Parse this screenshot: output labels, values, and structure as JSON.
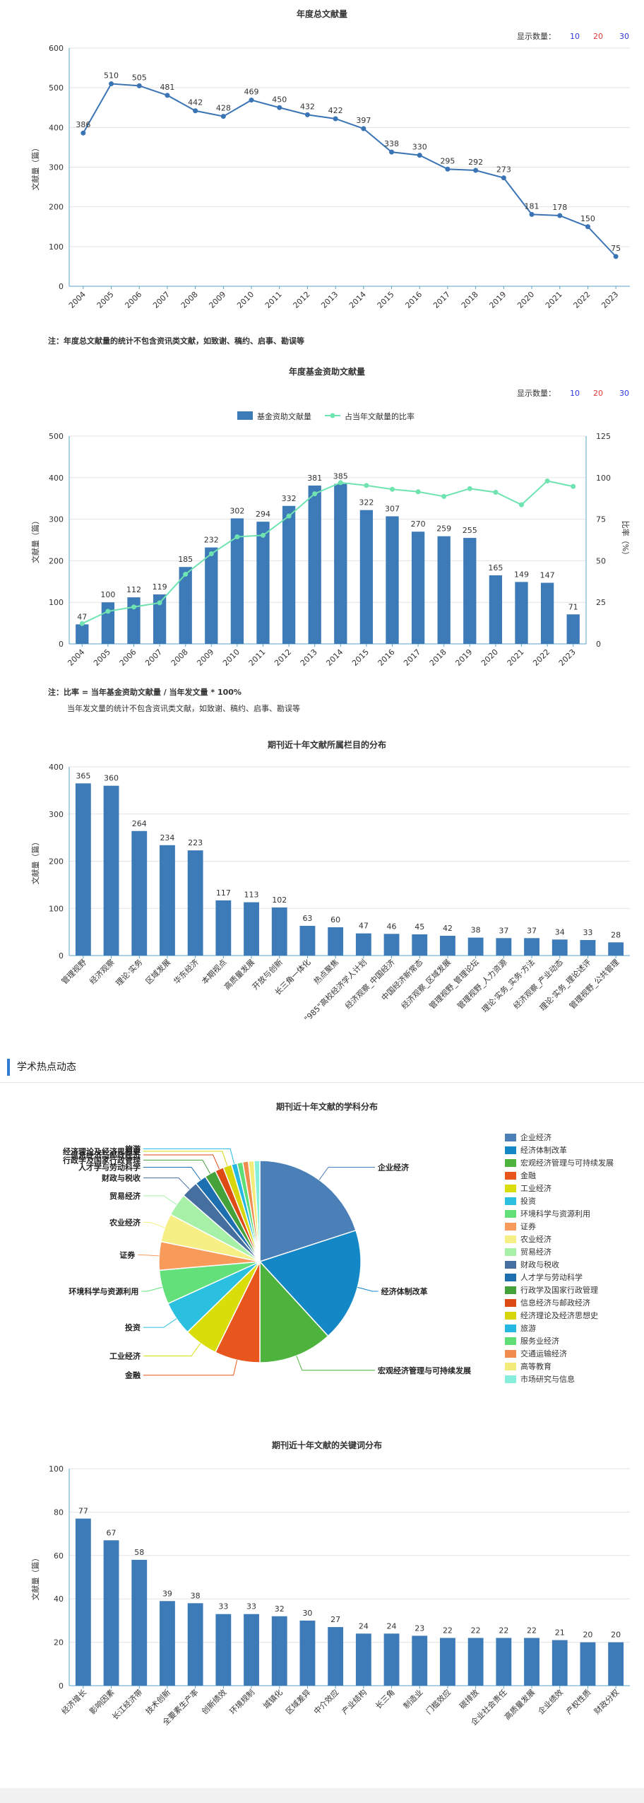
{
  "count_selector": {
    "label": "显示数量：",
    "options": [
      "10",
      "20",
      "30"
    ],
    "colors": [
      "#2f38e0",
      "#e23b3b",
      "#2f38e0"
    ]
  },
  "note1": "注：年度总文献量的统计不包含资讯类文献，如致谢、稿约、启事、勘误等",
  "note2_line1": "注：比率 = 当年基金资助文献量 / 当年发文量 * 100%",
  "note2_line2": "当年发文量的统计不包含资讯类文献，如致谢、稿约、启事、勘误等",
  "section_title": "学术热点动态",
  "chart_data": [
    {
      "type": "line",
      "title": "年度总文献量",
      "ylabel": "文献量（篇）",
      "ylim": [
        0,
        600
      ],
      "yticks": [
        0,
        100,
        200,
        300,
        400,
        500,
        600
      ],
      "x": [
        "2004",
        "2005",
        "2006",
        "2007",
        "2008",
        "2009",
        "2010",
        "2011",
        "2012",
        "2013",
        "2014",
        "2015",
        "2016",
        "2017",
        "2018",
        "2019",
        "2020",
        "2021",
        "2022",
        "2023"
      ],
      "values": [
        386,
        510,
        505,
        481,
        442,
        428,
        469,
        450,
        432,
        422,
        397,
        338,
        330,
        295,
        292,
        273,
        181,
        178,
        150,
        75
      ],
      "color": "#3a74b5"
    },
    {
      "type": "bar",
      "title": "年度基金资助文献量",
      "ylabel": "文献量（篇）",
      "y2label": "比率（%）",
      "ylim": [
        0,
        500
      ],
      "y2lim": [
        0,
        125
      ],
      "yticks": [
        0,
        100,
        200,
        300,
        400,
        500
      ],
      "y2ticks": [
        0,
        25,
        50,
        75,
        100,
        125
      ],
      "x": [
        "2004",
        "2005",
        "2006",
        "2007",
        "2008",
        "2009",
        "2010",
        "2011",
        "2012",
        "2013",
        "2014",
        "2015",
        "2016",
        "2017",
        "2018",
        "2019",
        "2020",
        "2021",
        "2022",
        "2023"
      ],
      "series": [
        {
          "name": "基金资助文献量",
          "type": "bar",
          "color": "#3d7ab8",
          "values": [
            47,
            100,
            112,
            119,
            185,
            232,
            302,
            294,
            332,
            381,
            385,
            322,
            307,
            270,
            259,
            255,
            165,
            149,
            147,
            71
          ]
        },
        {
          "name": "占当年文献量的比率",
          "type": "line",
          "color": "#6fe3b0",
          "values": [
            12.2,
            19.6,
            22.2,
            24.7,
            41.9,
            54.2,
            64.4,
            65.3,
            76.9,
            90.3,
            97.0,
            95.3,
            93.0,
            91.5,
            88.7,
            93.4,
            91.2,
            83.7,
            98.0,
            94.7
          ]
        }
      ]
    },
    {
      "type": "bar",
      "title": "期刊近十年文献所属栏目的分布",
      "ylabel": "文献量（篇）",
      "ylim": [
        0,
        400
      ],
      "yticks": [
        0,
        100,
        200,
        300,
        400
      ],
      "categories": [
        "管理视野",
        "经济观察",
        "理论·实务",
        "区域发展",
        "华东经济",
        "本期视点",
        "高质量发展",
        "开放与创新",
        "长三角一体化",
        "热点聚焦",
        "\"985\"高校经济学人计划",
        "经济观察_中国经济",
        "中国经济新常态",
        "经济观察_区域发展",
        "管理视野_管理论坛",
        "管理视野_人力资源",
        "理论·实务_实务·方法",
        "经济观察_产业动态",
        "理论·实务_理论述评",
        "管理视野_公共管理"
      ],
      "values": [
        365,
        360,
        264,
        234,
        223,
        117,
        113,
        102,
        63,
        60,
        47,
        46,
        45,
        42,
        38,
        37,
        37,
        34,
        33,
        28
      ],
      "color": "#3d7ab8"
    },
    {
      "type": "pie",
      "title": "期刊近十年文献的学科分布",
      "categories": [
        "企业经济",
        "经济体制改革",
        "宏观经济管理与可持续发展",
        "金融",
        "工业经济",
        "投资",
        "环境科学与资源利用",
        "证券",
        "农业经济",
        "贸易经济",
        "财政与税收",
        "人才学与劳动科学",
        "行政学及国家行政管理",
        "信息经济与邮政经济",
        "经济理论及经济思想史",
        "旅游",
        "服务业经济",
        "交通运输经济",
        "高等教育",
        "市场研究与信息"
      ],
      "values": [
        22,
        20,
        13,
        8,
        6,
        6,
        6,
        5,
        5,
        4,
        3,
        2,
        2,
        1.5,
        1.5,
        1,
        1,
        1,
        1,
        1
      ],
      "colors": [
        "#4a7fb8",
        "#1487c7",
        "#4db33d",
        "#e8561e",
        "#d9de0b",
        "#2bbfe0",
        "#63e07a",
        "#f79a5a",
        "#f6ef86",
        "#a6f0a8",
        "#446f9e",
        "#1e6fb0",
        "#45a23a",
        "#de4a14",
        "#d7d60a",
        "#25b8e3",
        "#5fde76",
        "#f08c4d",
        "#f4ec7a",
        "#86eedb"
      ]
    },
    {
      "type": "bar",
      "title": "期刊近十年文献的关键词分布",
      "ylabel": "文献量（篇）",
      "ylim": [
        0,
        100
      ],
      "yticks": [
        0,
        20,
        40,
        60,
        80,
        100
      ],
      "categories": [
        "经济增长",
        "影响因素",
        "长江经济带",
        "技术创新",
        "全要素生产率",
        "创新绩效",
        "环境规制",
        "城镇化",
        "区域差异",
        "中介效应",
        "产业结构",
        "长三角",
        "制造业",
        "门槛效应",
        "碳排放",
        "企业社会责任",
        "高质量发展",
        "企业绩效",
        "产权性质",
        "财政分权"
      ],
      "values": [
        77,
        67,
        58,
        39,
        38,
        33,
        33,
        32,
        30,
        27,
        24,
        24,
        23,
        22,
        22,
        22,
        22,
        21,
        20,
        20
      ],
      "color": "#3d7ab8"
    }
  ]
}
